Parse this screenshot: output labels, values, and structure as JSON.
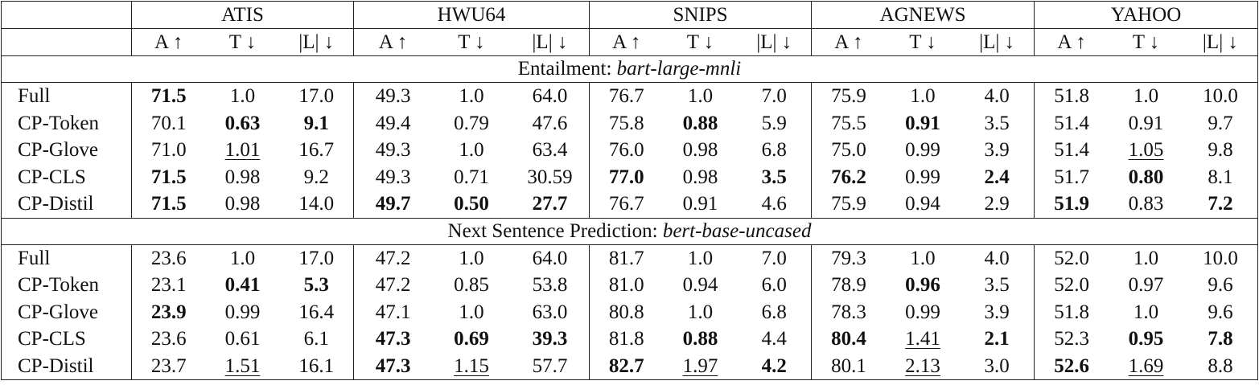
{
  "table": {
    "datasets": [
      "ATIS",
      "HWU64",
      "SNIPS",
      "AGNEWS",
      "YAHOO"
    ],
    "metrics": [
      "A ↑",
      "T ↓",
      "|L| ↓"
    ],
    "sections": [
      {
        "label": "Entailment:",
        "model": "bart-large-mnli",
        "rows": [
          {
            "name": "Full",
            "cells": [
              "71.5",
              "1.0",
              "17.0",
              "49.3",
              "1.0",
              "64.0",
              "76.7",
              "1.0",
              "7.0",
              "75.9",
              "1.0",
              "4.0",
              "51.8",
              "1.0",
              "10.0"
            ],
            "bold": [
              0
            ]
          },
          {
            "name": "CP-Token",
            "cells": [
              "70.1",
              "0.63",
              "9.1",
              "49.4",
              "0.79",
              "47.6",
              "75.8",
              "0.88",
              "5.9",
              "75.5",
              "0.91",
              "3.5",
              "51.4",
              "0.91",
              "9.7"
            ],
            "bold": [
              1,
              2,
              7,
              10
            ]
          },
          {
            "name": "CP-Glove",
            "cells": [
              "71.0",
              "1.01",
              "16.7",
              "49.3",
              "1.0",
              "63.4",
              "76.0",
              "0.98",
              "6.8",
              "75.0",
              "0.99",
              "3.9",
              "51.4",
              "1.05",
              "9.8"
            ],
            "underline": [
              1,
              13
            ]
          },
          {
            "name": "CP-CLS",
            "cells": [
              "71.5",
              "0.98",
              "9.2",
              "49.3",
              "0.71",
              "30.59",
              "77.0",
              "0.98",
              "3.5",
              "76.2",
              "0.99",
              "2.4",
              "51.7",
              "0.80",
              "8.1"
            ],
            "bold": [
              0,
              6,
              8,
              9,
              11,
              13
            ]
          },
          {
            "name": "CP-Distil",
            "cells": [
              "71.5",
              "0.98",
              "14.0",
              "49.7",
              "0.50",
              "27.7",
              "76.7",
              "0.91",
              "4.6",
              "75.9",
              "0.94",
              "2.9",
              "51.9",
              "0.83",
              "7.2"
            ],
            "bold": [
              0,
              3,
              4,
              5,
              12,
              14
            ]
          }
        ]
      },
      {
        "label": "Next Sentence Prediction:",
        "model": "bert-base-uncased",
        "rows": [
          {
            "name": "Full",
            "cells": [
              "23.6",
              "1.0",
              "17.0",
              "47.2",
              "1.0",
              "64.0",
              "81.7",
              "1.0",
              "7.0",
              "79.3",
              "1.0",
              "4.0",
              "52.0",
              "1.0",
              "10.0"
            ]
          },
          {
            "name": "CP-Token",
            "cells": [
              "23.1",
              "0.41",
              "5.3",
              "47.2",
              "0.85",
              "53.8",
              "81.0",
              "0.94",
              "6.0",
              "78.9",
              "0.96",
              "3.5",
              "52.0",
              "0.97",
              "9.6"
            ],
            "bold": [
              1,
              2,
              10
            ]
          },
          {
            "name": "CP-Glove",
            "cells": [
              "23.9",
              "0.99",
              "16.4",
              "47.1",
              "1.0",
              "63.0",
              "80.8",
              "1.0",
              "6.8",
              "78.3",
              "0.99",
              "3.9",
              "51.8",
              "1.0",
              "9.6"
            ],
            "bold": [
              0
            ]
          },
          {
            "name": "CP-CLS",
            "cells": [
              "23.6",
              "0.61",
              "6.1",
              "47.3",
              "0.69",
              "39.3",
              "81.8",
              "0.88",
              "4.4",
              "80.4",
              "1.41",
              "2.1",
              "52.3",
              "0.95",
              "7.8"
            ],
            "bold": [
              3,
              4,
              5,
              7,
              9,
              11,
              13,
              14
            ],
            "underline": [
              10
            ]
          },
          {
            "name": "CP-Distil",
            "cells": [
              "23.7",
              "1.51",
              "16.1",
              "47.3",
              "1.15",
              "57.7",
              "82.7",
              "1.97",
              "4.2",
              "80.1",
              "2.13",
              "3.0",
              "52.6",
              "1.69",
              "8.8"
            ],
            "bold": [
              3,
              6,
              8,
              12
            ],
            "underline": [
              1,
              4,
              7,
              10,
              13
            ]
          }
        ]
      }
    ]
  }
}
